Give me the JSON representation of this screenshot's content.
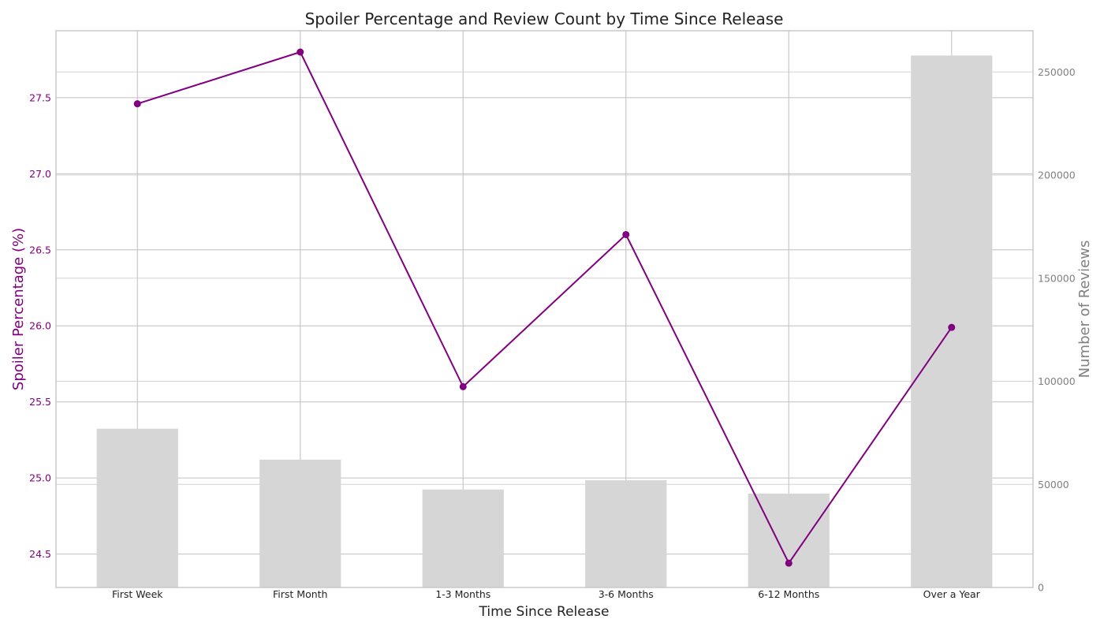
{
  "colors": {
    "line": "#800080",
    "bars": "#d6d6d6",
    "right_axis_text": "#808080",
    "left_axis_text": "#800080",
    "grid": "#d3d3d3",
    "spine": "#c8c8c8"
  },
  "chart_data": {
    "type": "bar+line",
    "title": "Spoiler Percentage and Review Count by Time Since Release",
    "xlabel": "Time Since Release",
    "ylabel_left": "Spoiler Percentage (%)",
    "ylabel_right": "Number of Reviews",
    "categories": [
      "First Week",
      "First Month",
      "1-3 Months",
      "3-6 Months",
      "6-12 Months",
      "Over a Year"
    ],
    "left_axis": {
      "ylim": [
        24.28,
        27.94
      ],
      "ticks": [
        24.5,
        25.0,
        25.5,
        26.0,
        26.5,
        27.0,
        27.5
      ],
      "tick_labels": [
        "24.5",
        "25.0",
        "25.5",
        "26.0",
        "26.5",
        "27.0",
        "27.5"
      ]
    },
    "right_axis": {
      "ylim": [
        0,
        270000
      ],
      "ticks": [
        0,
        50000,
        100000,
        150000,
        200000,
        250000
      ],
      "tick_labels": [
        "0",
        "50000",
        "100000",
        "150000",
        "200000",
        "250000"
      ]
    },
    "series": [
      {
        "kind": "bar",
        "axis": "right",
        "values": [
          77000,
          62000,
          47500,
          52000,
          45500,
          258000
        ]
      },
      {
        "kind": "line",
        "axis": "left",
        "marker": "circle",
        "values": [
          27.46,
          27.8,
          25.6,
          26.6,
          24.44,
          25.99
        ]
      }
    ],
    "grid": true
  }
}
